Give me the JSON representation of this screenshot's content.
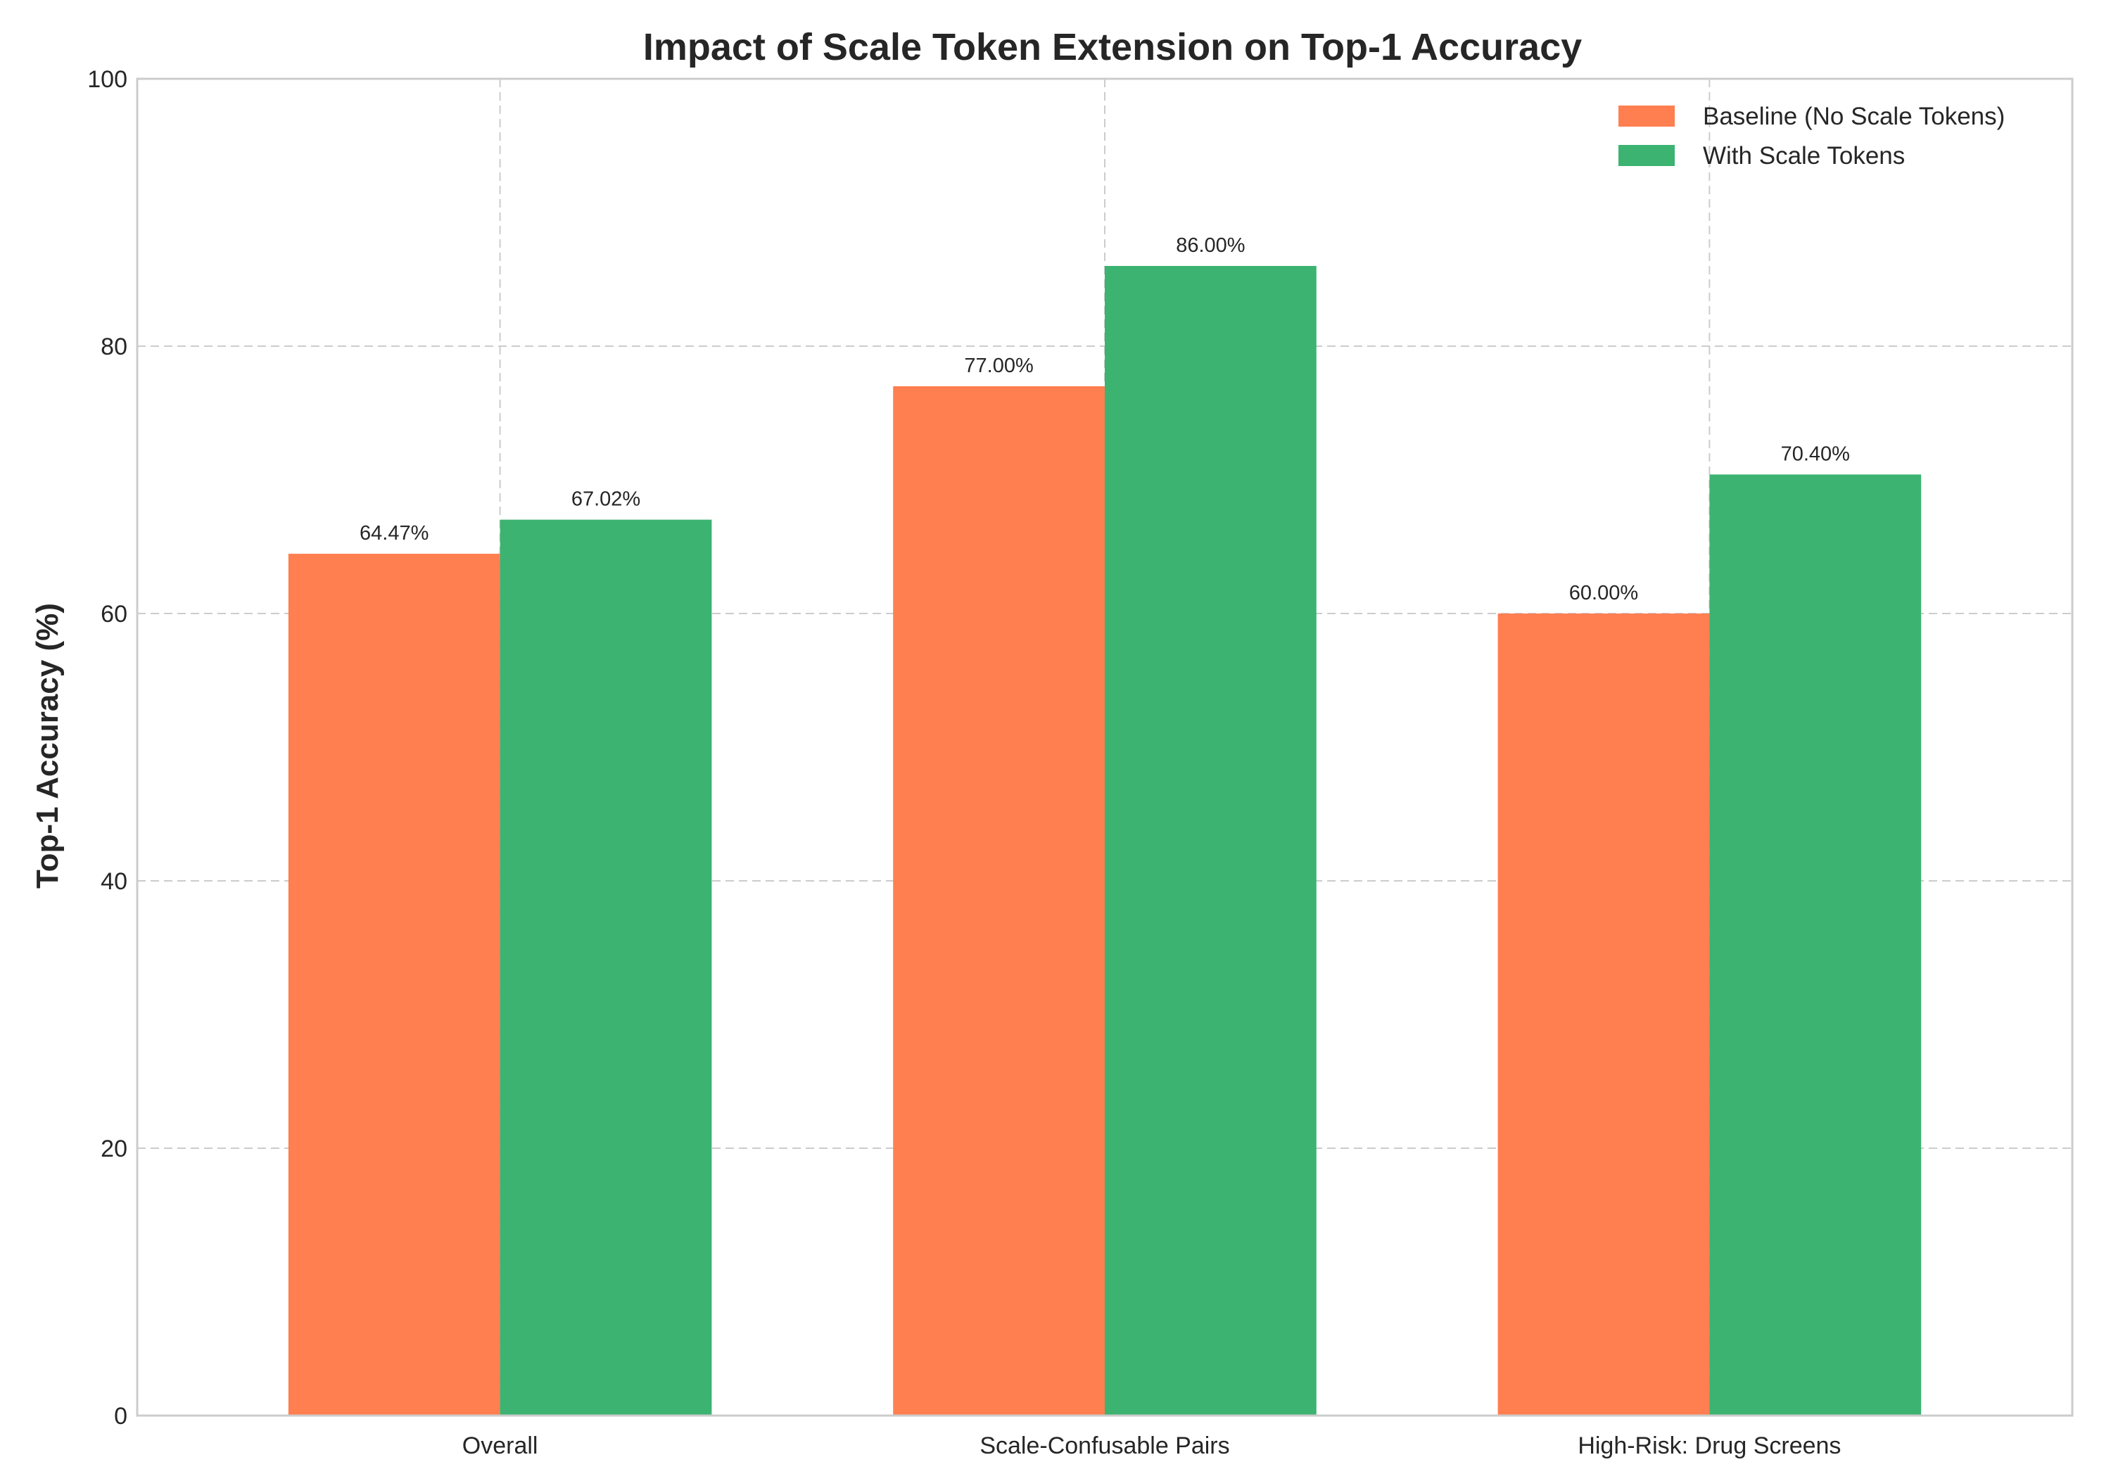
{
  "chart_data": {
    "type": "bar",
    "title": "Impact of Scale Token Extension on Top-1 Accuracy",
    "xlabel": "",
    "ylabel": "Top-1 Accuracy (%)",
    "categories": [
      "Overall",
      "Scale-Confusable Pairs",
      "High-Risk: Drug Screens"
    ],
    "series": [
      {
        "name": "Baseline (No Scale Tokens)",
        "color": "#FF7F50",
        "values": [
          64.47,
          77.0,
          60.0
        ],
        "labels": [
          "64.47%",
          "77.00%",
          "60.00%"
        ]
      },
      {
        "name": "With Scale Tokens",
        "color": "#3CB371",
        "values": [
          67.02,
          86.0,
          70.4
        ],
        "labels": [
          "67.02%",
          "86.00%",
          "70.40%"
        ]
      }
    ],
    "ylim": [
      0,
      100
    ],
    "yticks": [
      0,
      20,
      40,
      60,
      80,
      100
    ],
    "ytick_labels": [
      "0",
      "20",
      "40",
      "60",
      "80",
      "100"
    ],
    "grid": true,
    "legend": "top-right"
  }
}
